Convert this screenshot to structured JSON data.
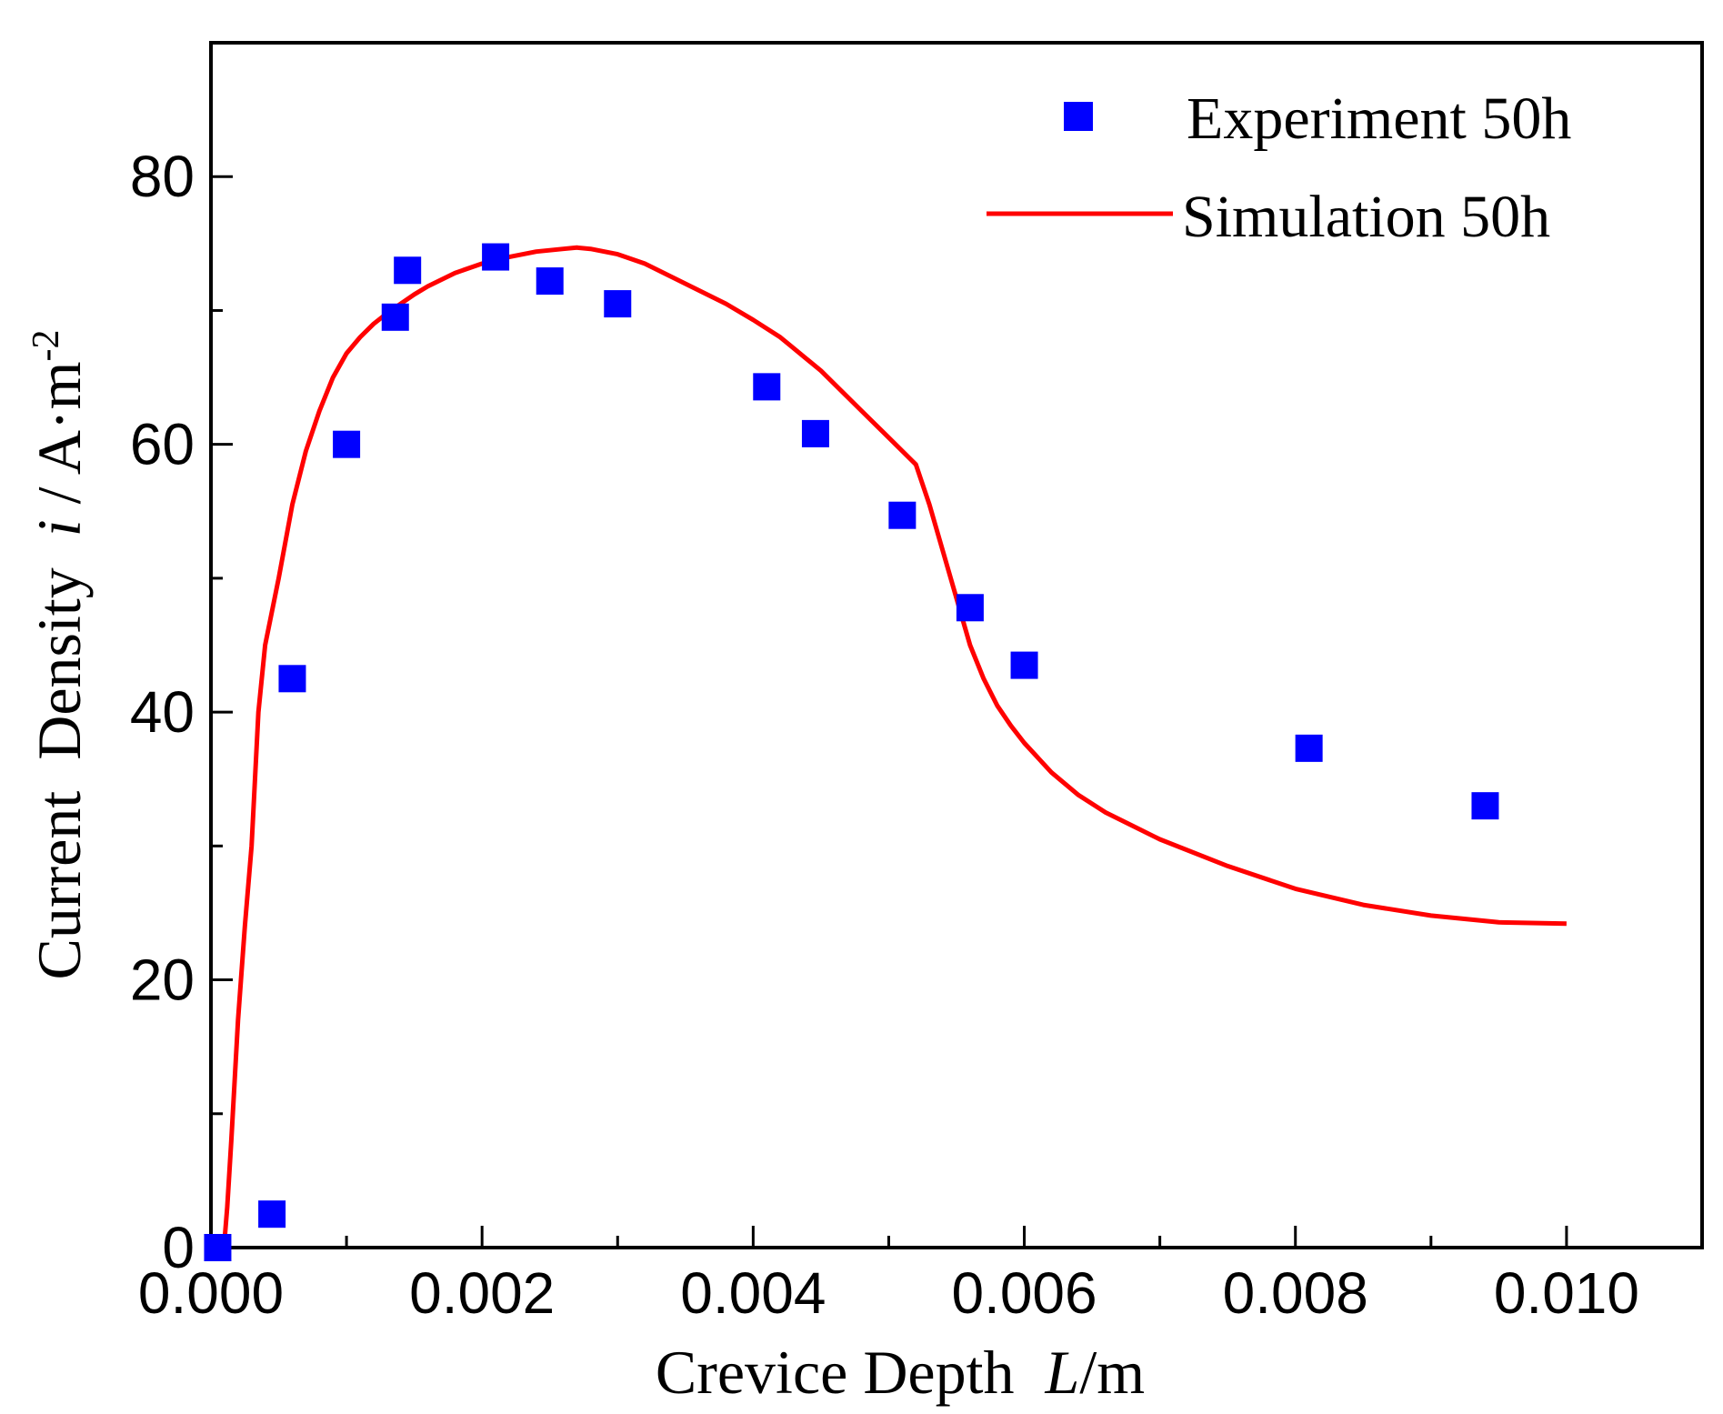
{
  "chart_data": {
    "type": "scatter",
    "title": "",
    "xlabel": {
      "text": "Crevice Depth",
      "var": "L",
      "unit": "/m"
    },
    "ylabel": {
      "text": "Current  Density",
      "var": "i",
      "unit": " / A·m",
      "sup": "-2"
    },
    "xlim": [
      0,
      0.011
    ],
    "ylim": [
      0,
      90
    ],
    "x_ticks": [
      "0.000",
      "0.002",
      "0.004",
      "0.006",
      "0.008",
      "0.010"
    ],
    "x_tick_values": [
      0,
      0.002,
      0.004,
      0.006,
      0.008,
      0.01
    ],
    "y_ticks": [
      "0",
      "20",
      "40",
      "60",
      "80"
    ],
    "y_tick_values": [
      0,
      20,
      40,
      60,
      80
    ],
    "grid": false,
    "legend_position": "top-right",
    "series": [
      {
        "name": "Experiment 50h",
        "kind": "scatter",
        "marker": "square",
        "color": "#0000ff",
        "x": [
          5e-05,
          0.00045,
          0.0006,
          0.001,
          0.00136,
          0.00145,
          0.0021,
          0.0025,
          0.003,
          0.0041,
          0.00446,
          0.0051,
          0.0056,
          0.006,
          0.0081,
          0.0094
        ],
        "y": [
          0.0,
          2.5,
          42.5,
          60.0,
          69.5,
          73.0,
          74.0,
          72.2,
          70.5,
          64.3,
          60.8,
          54.7,
          47.8,
          43.5,
          37.3,
          33.0
        ]
      },
      {
        "name": "Simulation 50h",
        "kind": "line",
        "color": "#ff0000",
        "x": [
          0.0,
          0.0001,
          0.00012,
          0.00015,
          0.0002,
          0.00025,
          0.0003,
          0.00035,
          0.0004,
          0.0005,
          0.0006,
          0.0007,
          0.0008,
          0.0009,
          0.001,
          0.0011,
          0.0012,
          0.0013,
          0.0014,
          0.0015,
          0.0016,
          0.0018,
          0.002,
          0.0022,
          0.0024,
          0.0026,
          0.0027,
          0.0028,
          0.003,
          0.0032,
          0.0035,
          0.0038,
          0.004,
          0.0042,
          0.0045,
          0.0048,
          0.005,
          0.0052,
          0.0053,
          0.0054,
          0.0055,
          0.0056,
          0.0057,
          0.0058,
          0.0059,
          0.006,
          0.0062,
          0.0064,
          0.0066,
          0.0068,
          0.007,
          0.0075,
          0.008,
          0.0085,
          0.009,
          0.0095,
          0.01
        ],
        "y": [
          0.0,
          0.5,
          3.0,
          8.0,
          17.0,
          24.0,
          30.0,
          40.0,
          45.0,
          50.0,
          55.5,
          59.5,
          62.5,
          65.0,
          66.8,
          68.0,
          69.0,
          69.8,
          70.5,
          71.2,
          71.8,
          72.8,
          73.5,
          74.0,
          74.4,
          74.6,
          74.7,
          74.6,
          74.2,
          73.5,
          72.0,
          70.5,
          69.3,
          68.0,
          65.5,
          62.5,
          60.5,
          58.5,
          55.5,
          52.0,
          48.5,
          45.0,
          42.5,
          40.5,
          39.0,
          37.7,
          35.5,
          33.8,
          32.5,
          31.5,
          30.5,
          28.5,
          26.8,
          25.6,
          24.8,
          24.3,
          24.2
        ]
      }
    ]
  }
}
